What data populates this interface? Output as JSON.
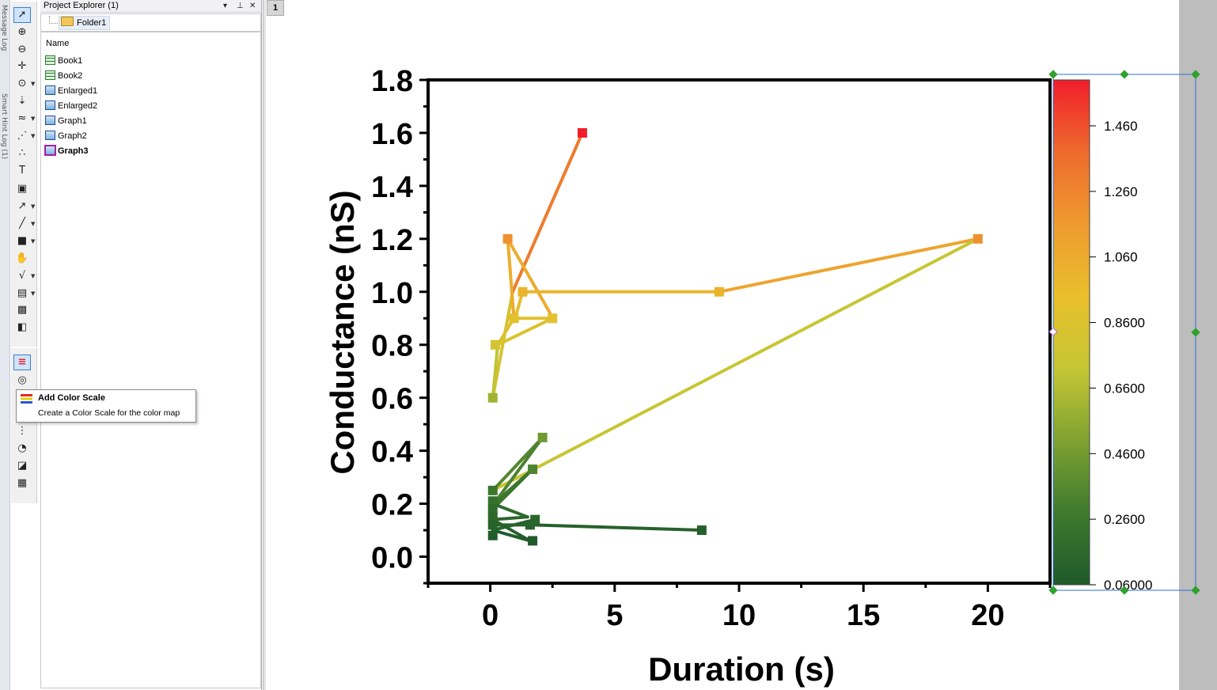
{
  "window": {
    "page_tab": "1",
    "side_labels": [
      "Message Log",
      "Smart Hint Log (1)"
    ]
  },
  "toolbar": {
    "tools": [
      {
        "name": "pointer-tool-icon",
        "glyph": "➚"
      },
      {
        "name": "zoom-in-tool-icon",
        "glyph": "⊕"
      },
      {
        "name": "zoom-out-tool-icon",
        "glyph": "⊖"
      },
      {
        "name": "screen-reader-tool-icon",
        "glyph": "✛"
      },
      {
        "name": "data-reader-tool-icon",
        "glyph": "⊙"
      },
      {
        "name": "annotation-tool-icon",
        "glyph": "⇣"
      },
      {
        "name": "data-selector-tool-icon",
        "glyph": "≈"
      },
      {
        "name": "region-mask-tool-icon",
        "glyph": "⋰"
      },
      {
        "name": "draw-data-tool-icon",
        "glyph": "∴"
      },
      {
        "name": "text-tool-icon",
        "glyph": "T"
      },
      {
        "name": "insert-table-tool-icon",
        "glyph": "▣"
      },
      {
        "name": "arrow-tool-icon",
        "glyph": "↗"
      },
      {
        "name": "line-tool-icon",
        "glyph": "╱"
      },
      {
        "name": "rectangle-tool-icon",
        "glyph": "■"
      },
      {
        "name": "hand-pan-tool-icon",
        "glyph": "✋"
      },
      {
        "name": "insert-equation-tool-icon",
        "glyph": "√"
      },
      {
        "name": "insert-graph-tool-icon",
        "glyph": "▤"
      },
      {
        "name": "insert-3d-tool-icon",
        "glyph": "▩"
      },
      {
        "name": "layer-3d-tool-icon",
        "glyph": "◧"
      }
    ],
    "tools2": [
      {
        "name": "add-color-scale-icon",
        "glyph": "≡"
      },
      {
        "name": "add-legend-icon",
        "glyph": "◎"
      },
      {
        "name": "add-layer-icon",
        "glyph": "⋮"
      },
      {
        "name": "timestamp-icon",
        "glyph": "◔"
      },
      {
        "name": "add-folder-note-icon",
        "glyph": "◪"
      },
      {
        "name": "add-table-icon",
        "glyph": "▦"
      }
    ]
  },
  "project_explorer": {
    "title": "Project Explorer (1)",
    "folder": "Folder1",
    "column_header": "Name",
    "items": [
      {
        "label": "Book1",
        "type": "book"
      },
      {
        "label": "Book2",
        "type": "book"
      },
      {
        "label": "Enlarged1",
        "type": "graph"
      },
      {
        "label": "Enlarged2",
        "type": "graph"
      },
      {
        "label": "Graph1",
        "type": "graph"
      },
      {
        "label": "Graph2",
        "type": "graph"
      },
      {
        "label": "Graph3",
        "type": "graph3"
      }
    ]
  },
  "tooltip": {
    "title": "Add Color Scale",
    "description": "Create a Color Scale for the color map"
  },
  "chart_data": {
    "type": "line",
    "xlabel": "Duration (s)",
    "ylabel": "Conductance (nS)",
    "xlim": [
      -2.5,
      22.5
    ],
    "ylim": [
      -0.1,
      1.8
    ],
    "xticks": [
      "0",
      "5",
      "10",
      "15",
      "20"
    ],
    "yticks": [
      "0.0",
      "0.2",
      "0.4",
      "0.6",
      "0.8",
      "1.0",
      "1.2",
      "1.4",
      "1.6",
      "1.8"
    ],
    "colorbar": {
      "ticks": [
        "1.460",
        "1.260",
        "1.060",
        "0.8600",
        "0.6600",
        "0.4600",
        "0.2600",
        "0.06000"
      ],
      "range": [
        0.06,
        1.6
      ],
      "colors": [
        "#1e5a2a",
        "#3f7a2e",
        "#7fa232",
        "#c6c634",
        "#e9bf2c",
        "#ee9a2f",
        "#ee6b2d",
        "#f01e2c"
      ]
    },
    "series": [
      {
        "x": [
          0.1,
          0.9,
          3.7
        ],
        "y": [
          0.6,
          1.0,
          1.6
        ]
      },
      {
        "x": [
          0.1,
          0.3,
          0.95,
          0.7,
          2.4
        ],
        "y": [
          0.6,
          0.8,
          0.9,
          1.2,
          0.92
        ]
      },
      {
        "x": [
          0.3,
          2.5,
          1.0,
          1.3,
          9.2,
          19.6
        ],
        "y": [
          0.8,
          0.9,
          0.9,
          1.0,
          1.0,
          1.2
        ]
      },
      {
        "x": [
          0.1,
          19.6
        ],
        "y": [
          0.25,
          1.2
        ]
      },
      {
        "x": [
          0.1,
          2.1,
          0.15,
          1.7,
          0.1
        ],
        "y": [
          0.25,
          0.45,
          0.2,
          0.33,
          0.18
        ]
      },
      {
        "x": [
          0.1,
          1.5,
          0.1,
          1.6,
          0.1,
          1.8
        ],
        "y": [
          0.2,
          0.15,
          0.14,
          0.06,
          0.1,
          0.14
        ]
      },
      {
        "x": [
          0.1,
          1.7,
          8.5
        ],
        "y": [
          0.12,
          0.12,
          0.1
        ]
      }
    ],
    "points": [
      {
        "x": 3.7,
        "y": 1.6
      },
      {
        "x": 0.7,
        "y": 1.2
      },
      {
        "x": 19.6,
        "y": 1.2
      },
      {
        "x": 1.3,
        "y": 1.0
      },
      {
        "x": 9.2,
        "y": 1.0
      },
      {
        "x": 0.95,
        "y": 0.9
      },
      {
        "x": 2.5,
        "y": 0.9
      },
      {
        "x": 0.2,
        "y": 0.8
      },
      {
        "x": 0.1,
        "y": 0.6
      },
      {
        "x": 2.1,
        "y": 0.45
      },
      {
        "x": 1.7,
        "y": 0.33
      },
      {
        "x": 0.1,
        "y": 0.25
      },
      {
        "x": 0.1,
        "y": 0.21
      },
      {
        "x": 0.1,
        "y": 0.18
      },
      {
        "x": 0.1,
        "y": 0.15
      },
      {
        "x": 0.1,
        "y": 0.12
      },
      {
        "x": 0.1,
        "y": 0.08
      },
      {
        "x": 1.8,
        "y": 0.14
      },
      {
        "x": 1.6,
        "y": 0.12
      },
      {
        "x": 1.7,
        "y": 0.06
      },
      {
        "x": 8.5,
        "y": 0.1
      }
    ]
  }
}
